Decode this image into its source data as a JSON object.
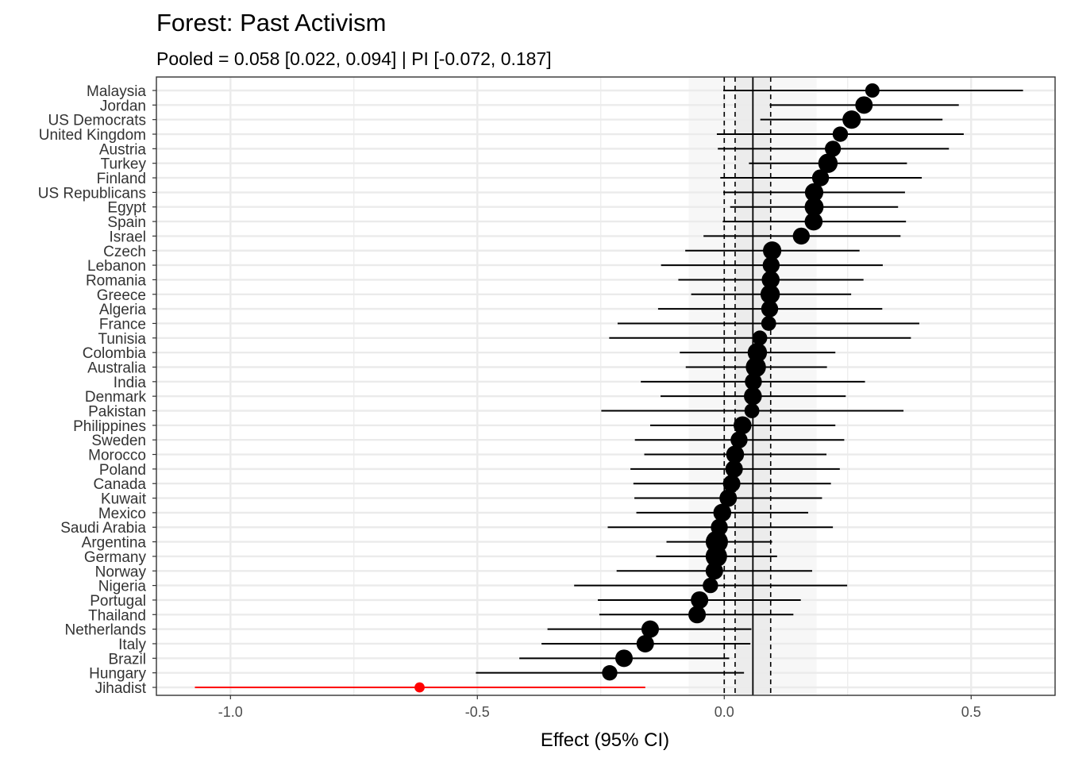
{
  "chart_data": {
    "type": "forest",
    "title": "Forest: Past Activism",
    "subtitle": "Pooled = 0.058 [0.022, 0.094] | PI [-0.072, 0.187]",
    "xlabel": "Effect (95% CI)",
    "xlim": [
      -1.15,
      0.67
    ],
    "xticks": [
      -1.0,
      -0.5,
      0.0,
      0.5
    ],
    "xtick_labels": [
      "-1.0",
      "-0.5",
      "0.0",
      "0.5"
    ],
    "grid": true,
    "pooled": {
      "estimate": 0.058,
      "ci_low": 0.022,
      "ci_high": 0.094,
      "pi_low": -0.072,
      "pi_high": 0.187
    },
    "rows": [
      {
        "label": "Malaysia",
        "estimate": 0.3,
        "ci_low": -0.002,
        "ci_high": 0.605,
        "weight": 12
      },
      {
        "label": "Jordan",
        "estimate": 0.283,
        "ci_low": 0.092,
        "ci_high": 0.475,
        "weight": 18
      },
      {
        "label": "US Democrats",
        "estimate": 0.258,
        "ci_low": 0.073,
        "ci_high": 0.442,
        "weight": 20
      },
      {
        "label": "United Kingdom",
        "estimate": 0.235,
        "ci_low": -0.015,
        "ci_high": 0.485,
        "weight": 14
      },
      {
        "label": "Austria",
        "estimate": 0.22,
        "ci_low": -0.013,
        "ci_high": 0.455,
        "weight": 15
      },
      {
        "label": "Turkey",
        "estimate": 0.21,
        "ci_low": 0.05,
        "ci_high": 0.37,
        "weight": 22
      },
      {
        "label": "Finland",
        "estimate": 0.195,
        "ci_low": -0.008,
        "ci_high": 0.4,
        "weight": 17
      },
      {
        "label": "US Republicans",
        "estimate": 0.182,
        "ci_low": -0.002,
        "ci_high": 0.366,
        "weight": 20
      },
      {
        "label": "Egypt",
        "estimate": 0.182,
        "ci_low": 0.012,
        "ci_high": 0.352,
        "weight": 21
      },
      {
        "label": "Spain",
        "estimate": 0.181,
        "ci_low": -0.003,
        "ci_high": 0.368,
        "weight": 19
      },
      {
        "label": "Israel",
        "estimate": 0.156,
        "ci_low": -0.042,
        "ci_high": 0.357,
        "weight": 17
      },
      {
        "label": "Czech",
        "estimate": 0.097,
        "ci_low": -0.079,
        "ci_high": 0.274,
        "weight": 20
      },
      {
        "label": "Lebanon",
        "estimate": 0.095,
        "ci_low": -0.128,
        "ci_high": 0.321,
        "weight": 17
      },
      {
        "label": "Romania",
        "estimate": 0.094,
        "ci_low": -0.093,
        "ci_high": 0.282,
        "weight": 19
      },
      {
        "label": "Greece",
        "estimate": 0.093,
        "ci_low": -0.067,
        "ci_high": 0.257,
        "weight": 22
      },
      {
        "label": "Algeria",
        "estimate": 0.092,
        "ci_low": -0.134,
        "ci_high": 0.32,
        "weight": 17
      },
      {
        "label": "France",
        "estimate": 0.09,
        "ci_low": -0.216,
        "ci_high": 0.395,
        "weight": 13
      },
      {
        "label": "Tunisia",
        "estimate": 0.072,
        "ci_low": -0.233,
        "ci_high": 0.378,
        "weight": 13
      },
      {
        "label": "Colombia",
        "estimate": 0.067,
        "ci_low": -0.09,
        "ci_high": 0.225,
        "weight": 22
      },
      {
        "label": "Australia",
        "estimate": 0.064,
        "ci_low": -0.078,
        "ci_high": 0.208,
        "weight": 24
      },
      {
        "label": "India",
        "estimate": 0.059,
        "ci_low": -0.169,
        "ci_high": 0.285,
        "weight": 17
      },
      {
        "label": "Denmark",
        "estimate": 0.058,
        "ci_low": -0.129,
        "ci_high": 0.246,
        "weight": 19
      },
      {
        "label": "Pakistan",
        "estimate": 0.056,
        "ci_low": -0.249,
        "ci_high": 0.363,
        "weight": 13
      },
      {
        "label": "Philippines",
        "estimate": 0.037,
        "ci_low": -0.15,
        "ci_high": 0.225,
        "weight": 19
      },
      {
        "label": "Sweden",
        "estimate": 0.03,
        "ci_low": -0.181,
        "ci_high": 0.243,
        "weight": 17
      },
      {
        "label": "Morocco",
        "estimate": 0.022,
        "ci_low": -0.162,
        "ci_high": 0.207,
        "weight": 19
      },
      {
        "label": "Poland",
        "estimate": 0.02,
        "ci_low": -0.19,
        "ci_high": 0.234,
        "weight": 18
      },
      {
        "label": "Canada",
        "estimate": 0.015,
        "ci_low": -0.184,
        "ci_high": 0.216,
        "weight": 18
      },
      {
        "label": "Kuwait",
        "estimate": 0.008,
        "ci_low": -0.182,
        "ci_high": 0.198,
        "weight": 18
      },
      {
        "label": "Mexico",
        "estimate": -0.004,
        "ci_low": -0.178,
        "ci_high": 0.17,
        "weight": 19
      },
      {
        "label": "Saudi Arabia",
        "estimate": -0.01,
        "ci_low": -0.236,
        "ci_high": 0.22,
        "weight": 17
      },
      {
        "label": "Argentina",
        "estimate": -0.015,
        "ci_low": -0.117,
        "ci_high": 0.097,
        "weight": 29
      },
      {
        "label": "Germany",
        "estimate": -0.016,
        "ci_low": -0.138,
        "ci_high": 0.107,
        "weight": 27
      },
      {
        "label": "Norway",
        "estimate": -0.02,
        "ci_low": -0.218,
        "ci_high": 0.178,
        "weight": 18
      },
      {
        "label": "Nigeria",
        "estimate": -0.028,
        "ci_low": -0.304,
        "ci_high": 0.249,
        "weight": 14
      },
      {
        "label": "Portugal",
        "estimate": -0.05,
        "ci_low": -0.256,
        "ci_high": 0.155,
        "weight": 18
      },
      {
        "label": "Thailand",
        "estimate": -0.055,
        "ci_low": -0.253,
        "ci_high": 0.14,
        "weight": 18
      },
      {
        "label": "Netherlands",
        "estimate": -0.15,
        "ci_low": -0.358,
        "ci_high": 0.055,
        "weight": 18
      },
      {
        "label": "Italy",
        "estimate": -0.16,
        "ci_low": -0.37,
        "ci_high": 0.053,
        "weight": 18
      },
      {
        "label": "Brazil",
        "estimate": -0.203,
        "ci_low": -0.415,
        "ci_high": 0.01,
        "weight": 18
      },
      {
        "label": "Hungary",
        "estimate": -0.232,
        "ci_low": -0.503,
        "ci_high": 0.04,
        "weight": 14
      },
      {
        "label": "Jihadist",
        "estimate": -0.617,
        "ci_low": -1.072,
        "ci_high": -0.16,
        "weight": 6,
        "color": "#ff0000"
      }
    ],
    "default_color": "#000000",
    "highlight_color": "#ff0000"
  }
}
